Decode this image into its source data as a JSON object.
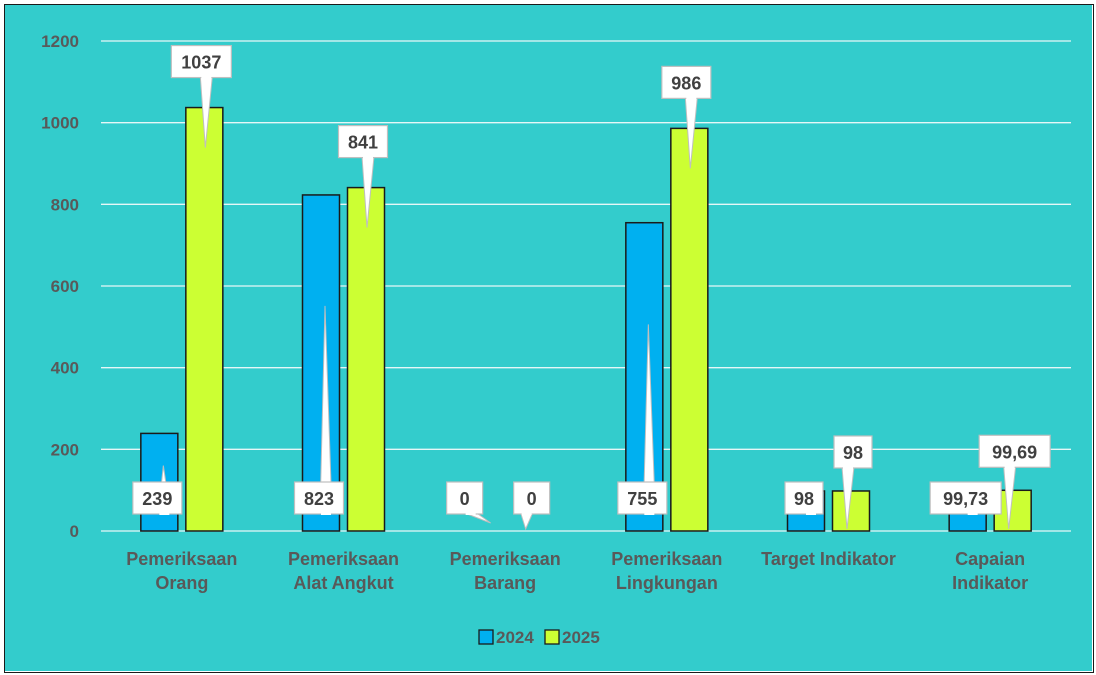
{
  "colors": {
    "background": "#33cccc",
    "gridline": "#e6f7f7",
    "series_2024": "#00b0f0",
    "series_2025": "#ccff33",
    "bar_outline": "#1a1a1a",
    "callout_fill": "#ffffff",
    "callout_border": "#bfbfbf"
  },
  "chart_data": {
    "type": "bar",
    "title": "",
    "xlabel": "",
    "ylabel": "",
    "ylim": [
      0,
      1200
    ],
    "yticks": [
      0,
      200,
      400,
      600,
      800,
      1000,
      1200
    ],
    "ytick_labels": [
      "0",
      "200",
      "400",
      "600",
      "800",
      "1000",
      "1200"
    ],
    "grid": true,
    "legend_position": "bottom",
    "categories": [
      [
        "Pemeriksaan",
        "Orang"
      ],
      [
        "Pemeriksaan",
        "Alat Angkut"
      ],
      [
        "Pemeriksaan",
        "Barang"
      ],
      [
        "Pemeriksaan",
        "Lingkungan"
      ],
      [
        "Target Indikator"
      ],
      [
        "Capaian",
        "Indikator"
      ]
    ],
    "series": [
      {
        "name": "2024",
        "color": "#00b0f0",
        "values": [
          239,
          823,
          0,
          755,
          98,
          99.73
        ],
        "labels": [
          "239",
          "823",
          "0",
          "755",
          "98",
          "99,73"
        ]
      },
      {
        "name": "2025",
        "color": "#ccff33",
        "values": [
          1037,
          841,
          0,
          986,
          98,
          99.69
        ],
        "labels": [
          "1037",
          "841",
          "0",
          "986",
          "98",
          "99,69"
        ]
      }
    ]
  }
}
